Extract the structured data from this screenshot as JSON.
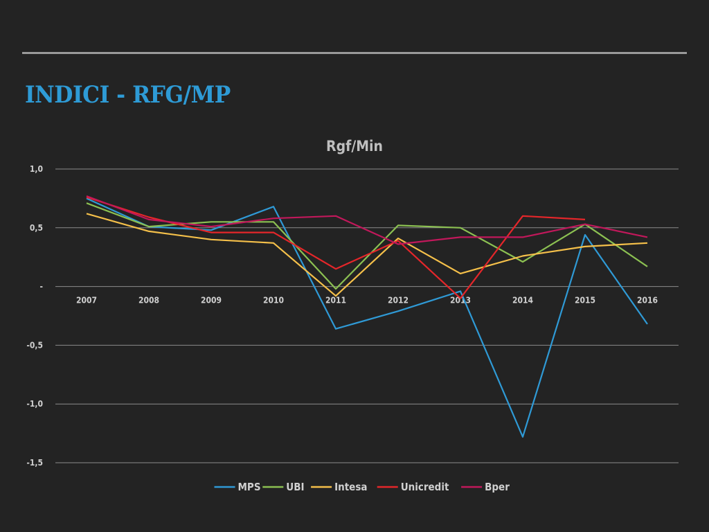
{
  "slide": {
    "title": "INDICI - RFG/MP"
  },
  "chart_data": {
    "type": "line",
    "title": "Rgf/Min",
    "xlabel": "",
    "ylabel": "",
    "ylim": [
      -1.5,
      1.0
    ],
    "y_ticks": [
      {
        "value": 1.0,
        "label": "1,0"
      },
      {
        "value": 0.5,
        "label": "0,5"
      },
      {
        "value": 0.0,
        "label": "-"
      },
      {
        "value": -0.5,
        "label": "-0,5"
      },
      {
        "value": -1.0,
        "label": "-1,0"
      },
      {
        "value": -1.5,
        "label": "-1,5"
      }
    ],
    "grid": true,
    "legend_position": "bottom",
    "categories": [
      "2007",
      "2008",
      "2009",
      "2010",
      "2011",
      "2012",
      "2013",
      "2014",
      "2015",
      "2016"
    ],
    "series": [
      {
        "name": "MPS",
        "color": "#2f9ad6",
        "values": [
          0.75,
          0.51,
          0.48,
          0.68,
          -0.36,
          -0.21,
          -0.04,
          -1.28,
          0.44,
          -0.32
        ]
      },
      {
        "name": "UBI",
        "color": "#8cc152",
        "values": [
          0.71,
          0.51,
          0.55,
          0.55,
          -0.02,
          0.52,
          0.5,
          0.21,
          0.53,
          0.17
        ]
      },
      {
        "name": "Intesa",
        "color": "#f5c04a",
        "values": [
          0.62,
          0.47,
          0.4,
          0.37,
          -0.08,
          0.41,
          0.11,
          0.26,
          0.34,
          0.37
        ]
      },
      {
        "name": "Unicredit",
        "color": "#e5262a",
        "values": [
          0.76,
          0.59,
          0.46,
          0.46,
          0.15,
          0.39,
          -0.1,
          0.6,
          0.57,
          null
        ]
      },
      {
        "name": "Bper",
        "color": "#c2185b",
        "values": [
          0.77,
          0.57,
          0.51,
          0.58,
          0.6,
          0.36,
          0.42,
          0.42,
          0.53,
          0.42
        ]
      }
    ]
  }
}
